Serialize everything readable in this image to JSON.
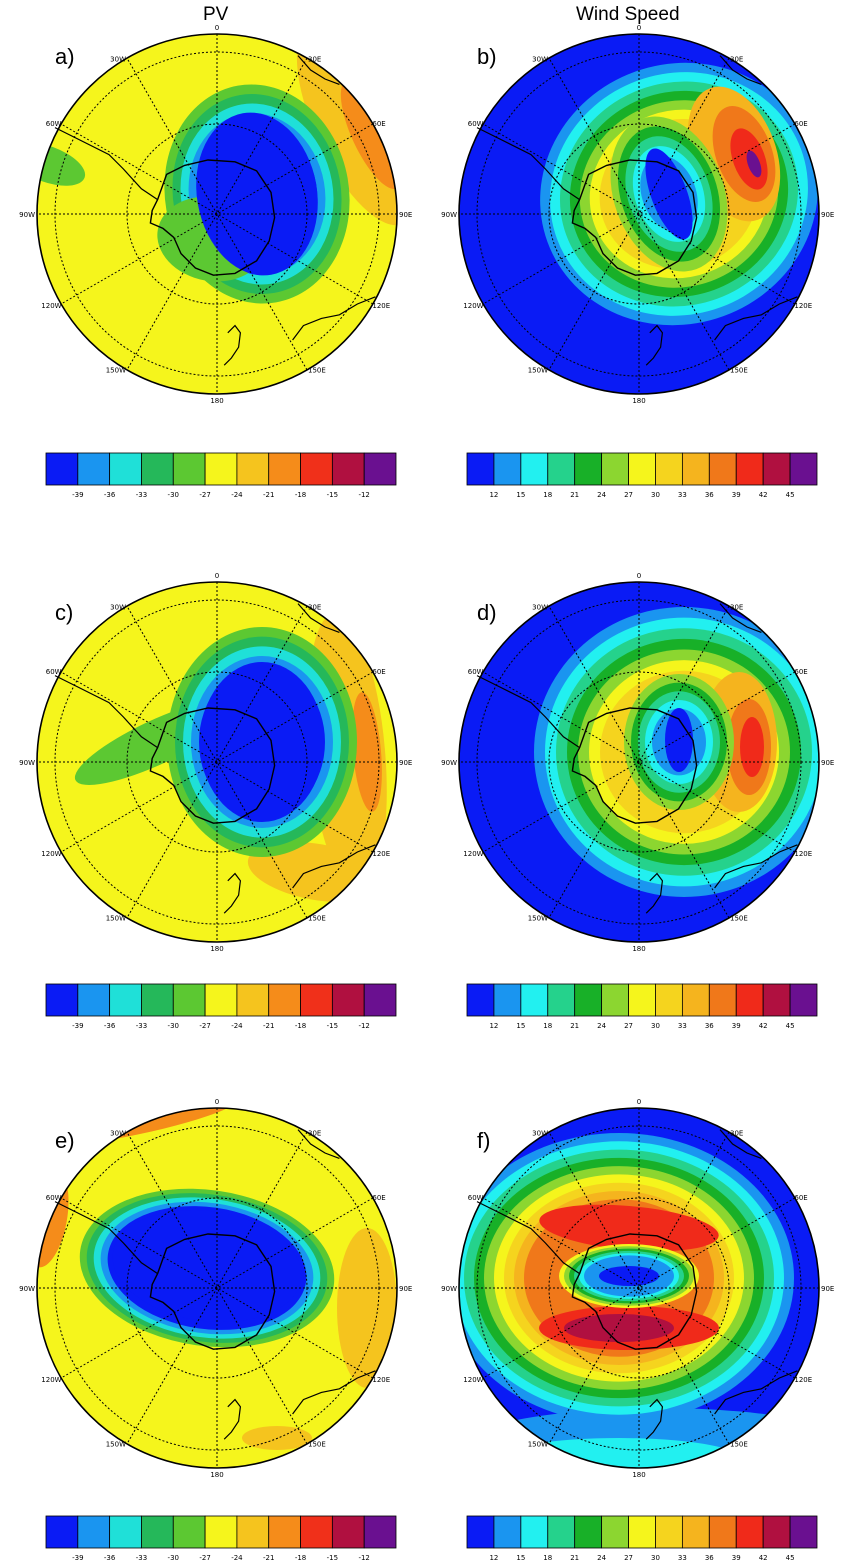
{
  "columns": {
    "left": "PV",
    "right": "Wind Speed"
  },
  "panels": [
    {
      "label": "a)",
      "field": "pv",
      "variant": 0
    },
    {
      "label": "b)",
      "field": "wind",
      "variant": 0
    },
    {
      "label": "c)",
      "field": "pv",
      "variant": 1
    },
    {
      "label": "d)",
      "field": "wind",
      "variant": 1
    },
    {
      "label": "e)",
      "field": "pv",
      "variant": 2
    },
    {
      "label": "f)",
      "field": "wind",
      "variant": 2
    }
  ],
  "lon_labels": [
    "0",
    "30E",
    "60E",
    "90E",
    "120E",
    "150E",
    "180",
    "150W",
    "120W",
    "90W",
    "60W",
    "30W"
  ],
  "pv_colorbar": {
    "colors": [
      "#0a1bf5",
      "#1a95f0",
      "#1fe0d8",
      "#25b85a",
      "#5cc832",
      "#f5f51c",
      "#f5c41e",
      "#f58c1a",
      "#f0301a",
      "#b01040",
      "#6a1090"
    ],
    "ticks": [
      "-39",
      "-36",
      "-33",
      "-30",
      "-27",
      "-24",
      "-21",
      "-18",
      "-15",
      "-12"
    ]
  },
  "wind_colorbar": {
    "colors": [
      "#0a1bf5",
      "#1a95f0",
      "#22f0f0",
      "#25d28c",
      "#18b028",
      "#8cd630",
      "#f5f51c",
      "#f5d41e",
      "#f5b41e",
      "#f0781a",
      "#f02a1a",
      "#b01040",
      "#6a1090"
    ],
    "ticks": [
      "12",
      "15",
      "18",
      "21",
      "24",
      "27",
      "30",
      "33",
      "36",
      "39",
      "42",
      "45"
    ]
  }
}
